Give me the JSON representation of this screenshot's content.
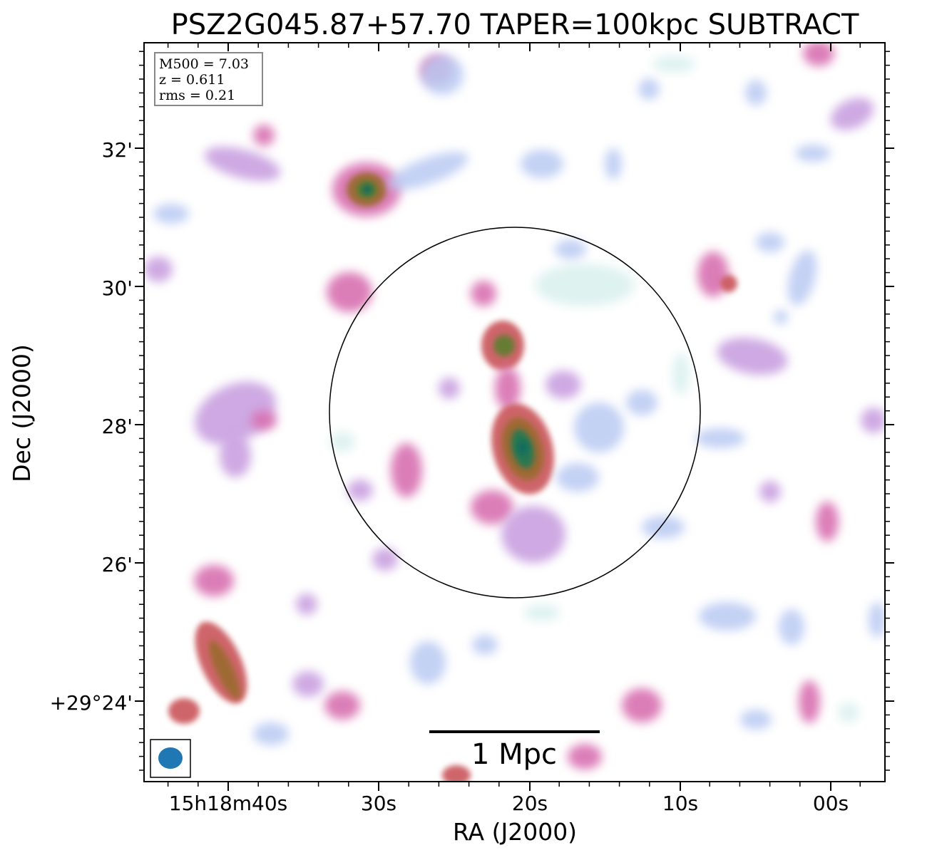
{
  "chart_data": {
    "type": "heatmap",
    "title": "PSZ2G045.87+57.70 TAPER=100kpc SUBTRACT",
    "xlabel": "RA (J2000)",
    "ylabel": "Dec (J2000)",
    "x_ticks": [
      "15h18m40s",
      "30s",
      "20s",
      "10s",
      "00s"
    ],
    "y_ticks": [
      "+29°24'",
      "26'",
      "28'",
      "30'",
      "32'"
    ],
    "info": {
      "m500": "M500 = 7.03",
      "z": "z = 0.611",
      "rms": "rms = 0.21"
    },
    "scalebar_label": "1 Mpc",
    "colormap": [
      "#d9f0ee",
      "#b9c9f2",
      "#c9a0e0",
      "#d86fb0",
      "#c9545a",
      "#9a6a2e",
      "#5b7f2e",
      "#1e7a55",
      "#0e6a60"
    ],
    "beam_color": "#1f77b4"
  }
}
